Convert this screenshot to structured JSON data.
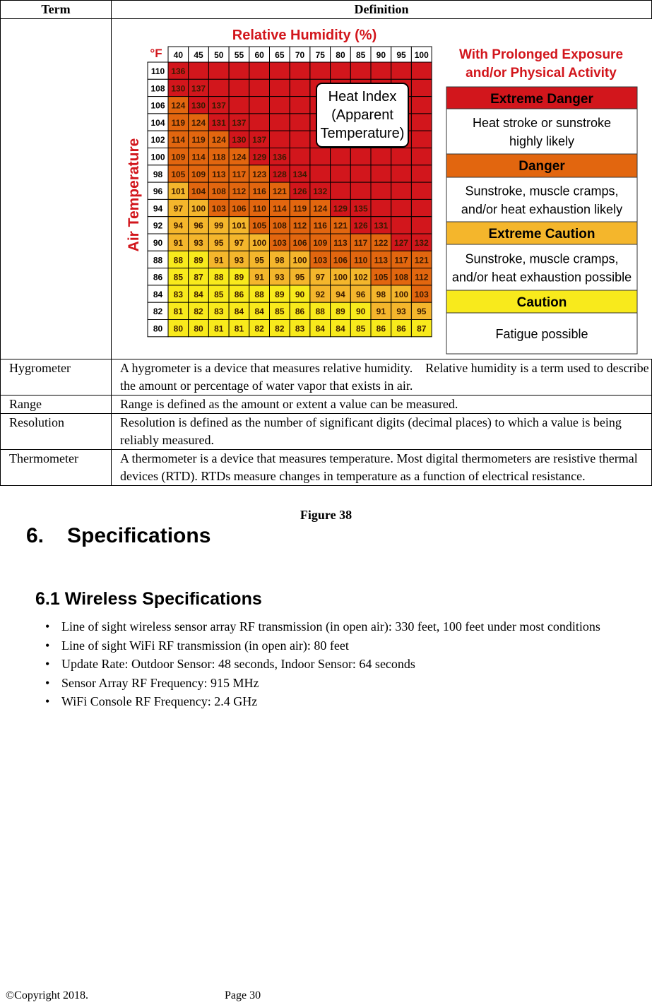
{
  "table": {
    "headers": [
      "Term",
      "Definition"
    ],
    "figure": {
      "title": "Relative Humidity (%)",
      "unit": "°F",
      "y_label": "Air Temperature",
      "inset": [
        "Heat Index",
        "(Apparent",
        "Temperature)"
      ],
      "humidity": [
        40,
        45,
        50,
        55,
        60,
        65,
        70,
        75,
        80,
        85,
        90,
        95,
        100
      ],
      "temperatures": [
        110,
        108,
        106,
        104,
        102,
        100,
        98,
        96,
        94,
        92,
        90,
        88,
        86,
        84,
        82,
        80
      ],
      "values": [
        [
          136
        ],
        [
          130,
          137
        ],
        [
          124,
          130,
          137
        ],
        [
          119,
          124,
          131,
          137
        ],
        [
          114,
          119,
          124,
          130,
          137
        ],
        [
          109,
          114,
          118,
          124,
          129,
          136
        ],
        [
          105,
          109,
          113,
          117,
          123,
          128,
          134
        ],
        [
          101,
          104,
          108,
          112,
          116,
          121,
          126,
          132
        ],
        [
          97,
          100,
          103,
          106,
          110,
          114,
          119,
          124,
          129,
          135
        ],
        [
          94,
          96,
          99,
          101,
          105,
          108,
          112,
          116,
          121,
          126,
          131
        ],
        [
          91,
          93,
          95,
          97,
          100,
          103,
          106,
          109,
          113,
          117,
          122,
          127,
          132
        ],
        [
          88,
          89,
          91,
          93,
          95,
          98,
          100,
          103,
          106,
          110,
          113,
          117,
          121
        ],
        [
          85,
          87,
          88,
          89,
          91,
          93,
          95,
          97,
          100,
          102,
          105,
          108,
          112
        ],
        [
          83,
          84,
          85,
          86,
          88,
          89,
          90,
          92,
          94,
          96,
          98,
          100,
          103
        ],
        [
          81,
          82,
          83,
          84,
          84,
          85,
          86,
          88,
          89,
          90,
          91,
          93,
          95
        ],
        [
          80,
          80,
          81,
          81,
          82,
          82,
          83,
          84,
          84,
          85,
          86,
          86,
          87
        ]
      ],
      "legend_heading": [
        "With Prolonged Exposure",
        "and/or Physical Activity"
      ],
      "levels": [
        {
          "name": "Extreme Danger",
          "color": "#d2161c",
          "description": [
            "Heat stroke or sunstroke",
            "highly likely"
          ]
        },
        {
          "name": "Danger",
          "color": "#e2660f",
          "description": [
            "Sunstroke, muscle cramps,",
            "and/or heat exhaustion likely"
          ]
        },
        {
          "name": "Extreme Caution",
          "color": "#f4b62c",
          "description": [
            "Sunstroke, muscle cramps,",
            "and/or heat exhaustion possible"
          ]
        },
        {
          "name": "Caution",
          "color": "#f8ea1c",
          "description": [
            "Fatigue possible"
          ]
        }
      ]
    },
    "rows": [
      [
        "Hygrometer",
        "A hygrometer is a device that measures relative humidity.    Relative humidity is a term used to describe the amount or percentage of water vapor that exists in air."
      ],
      [
        "Range",
        "Range is defined as the amount or extent a value can be measured."
      ],
      [
        "Resolution",
        "Resolution is defined as the number of significant digits (decimal places) to which a value is being reliably measured."
      ],
      [
        "Thermometer",
        "A thermometer is a device that measures temperature. Most digital thermometers are resistive thermal devices (RTD). RTDs measure changes in temperature as a function of electrical resistance."
      ]
    ]
  },
  "caption": "Figure 38",
  "section": {
    "number": "6.",
    "title": "Specifications"
  },
  "subsection": {
    "title": "6.1 Wireless Specifications",
    "items": [
      "Line of sight wireless sensor array RF transmission (in open air): 330 feet, 100 feet under most conditions",
      "Line of sight WiFi RF transmission (in open air): 80 feet",
      "Update Rate: Outdoor Sensor: 48 seconds, Indoor Sensor: 64 seconds",
      "Sensor Array RF Frequency: 915 MHz",
      "WiFi Console RF Frequency: 2.4 GHz"
    ]
  },
  "footer": {
    "copyright": "©Copyright 2018.",
    "page": "Page 30"
  }
}
